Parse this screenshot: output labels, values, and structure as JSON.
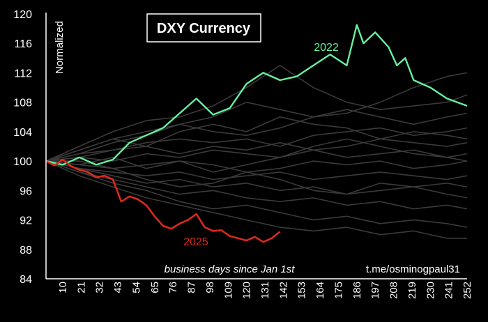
{
  "chart_data": {
    "type": "line",
    "title": "DXY Currency",
    "ylabel": "Normalized",
    "xlabel": "business days since Jan 1st",
    "watermark": "t.me/osminogpaul31",
    "ylim": [
      84,
      120
    ],
    "xlim": [
      0,
      252
    ],
    "y_ticks": [
      "84",
      "88",
      "92",
      "96",
      "100",
      "104",
      "108",
      "112",
      "116",
      "120"
    ],
    "x_ticks": [
      "10",
      "21",
      "32",
      "43",
      "54",
      "65",
      "76",
      "87",
      "98",
      "109",
      "120",
      "131",
      "142",
      "153",
      "164",
      "175",
      "186",
      "197",
      "208",
      "219",
      "230",
      "241",
      "252"
    ],
    "colors": {
      "background": "#000000",
      "axis": "#ffffff",
      "history": "#3a3a3a",
      "y2022": "#66f0a0",
      "y2025": "#d92a1c",
      "text": "#ffffff"
    },
    "series": [
      {
        "name": "2022",
        "label": "2022",
        "x": [
          0,
          10,
          20,
          30,
          40,
          50,
          60,
          70,
          80,
          90,
          100,
          110,
          120,
          130,
          140,
          150,
          160,
          170,
          180,
          186,
          190,
          197,
          205,
          210,
          215,
          220,
          230,
          240,
          252
        ],
        "values": [
          100,
          99.5,
          100.5,
          99.5,
          100.2,
          102.5,
          103.5,
          104.5,
          106.5,
          108.5,
          106.3,
          107.2,
          110.5,
          112,
          111,
          111.5,
          113,
          114.5,
          113,
          118.5,
          116,
          117.5,
          115.5,
          113,
          114,
          111,
          110,
          108.5,
          107.5
        ]
      },
      {
        "name": "2025",
        "label": "2025",
        "x": [
          0,
          5,
          10,
          15,
          20,
          25,
          30,
          35,
          40,
          45,
          50,
          55,
          60,
          65,
          70,
          75,
          80,
          85,
          90,
          95,
          100,
          105,
          110,
          115,
          120,
          125,
          130,
          135,
          140
        ],
        "values": [
          100,
          99.4,
          100.2,
          99.3,
          98.8,
          98.5,
          97.8,
          98,
          97.5,
          94.5,
          95.2,
          94.8,
          94,
          92.5,
          91.2,
          90.8,
          91.5,
          92,
          92.8,
          91,
          90.5,
          90.6,
          89.8,
          89.5,
          89.2,
          89.7,
          89,
          89.5,
          90.4
        ]
      },
      {
        "name": "history-1",
        "x": [
          0,
          20,
          40,
          60,
          80,
          100,
          120,
          140,
          160,
          180,
          200,
          220,
          240,
          252
        ],
        "values": [
          100,
          101.5,
          103,
          104,
          105,
          106,
          108,
          107,
          106,
          106.5,
          108,
          110,
          111.5,
          112
        ]
      },
      {
        "name": "history-2",
        "x": [
          0,
          20,
          40,
          60,
          80,
          100,
          120,
          140,
          160,
          180,
          200,
          220,
          240,
          252
        ],
        "values": [
          100,
          102,
          104,
          105.5,
          106,
          107.5,
          110,
          113,
          110,
          108,
          107,
          107.5,
          108,
          109
        ]
      },
      {
        "name": "history-3",
        "x": [
          0,
          20,
          40,
          60,
          80,
          100,
          120,
          140,
          160,
          180,
          200,
          220,
          240,
          252
        ],
        "values": [
          100,
          101,
          102.5,
          103.5,
          105,
          104,
          103.5,
          104.5,
          106,
          107,
          106,
          105,
          106,
          106.5
        ]
      },
      {
        "name": "history-4",
        "x": [
          0,
          20,
          40,
          60,
          80,
          100,
          120,
          140,
          160,
          180,
          200,
          220,
          240,
          252
        ],
        "values": [
          100,
          101,
          101.5,
          102.5,
          103,
          102.5,
          103,
          102,
          103.5,
          104,
          104.5,
          103.5,
          104,
          104.5
        ]
      },
      {
        "name": "history-5",
        "x": [
          0,
          20,
          40,
          60,
          80,
          100,
          120,
          140,
          160,
          180,
          200,
          220,
          240,
          252
        ],
        "values": [
          100,
          100.5,
          101.5,
          102,
          101,
          102,
          101.5,
          102.5,
          101.5,
          102,
          103,
          102.5,
          102,
          102.5
        ]
      },
      {
        "name": "history-6",
        "x": [
          0,
          20,
          40,
          60,
          80,
          100,
          120,
          140,
          160,
          180,
          200,
          220,
          240,
          252
        ],
        "values": [
          100,
          100.5,
          100,
          101,
          100.5,
          101.5,
          101,
          100.5,
          101.5,
          100.5,
          101,
          101.5,
          100.5,
          101
        ]
      },
      {
        "name": "history-7",
        "x": [
          0,
          20,
          40,
          60,
          80,
          100,
          120,
          140,
          160,
          180,
          200,
          220,
          240,
          252
        ],
        "values": [
          100,
          99.5,
          99,
          99.5,
          100,
          99.5,
          98.5,
          99,
          100,
          99.5,
          100,
          99,
          99.5,
          100
        ]
      },
      {
        "name": "history-8",
        "x": [
          0,
          20,
          40,
          60,
          80,
          100,
          120,
          140,
          160,
          180,
          200,
          220,
          240,
          252
        ],
        "values": [
          100,
          99,
          98.5,
          98,
          98.5,
          97.5,
          98,
          98.5,
          97.5,
          98,
          98.5,
          98,
          97.5,
          98
        ]
      },
      {
        "name": "history-9",
        "x": [
          0,
          20,
          40,
          60,
          80,
          100,
          120,
          140,
          160,
          180,
          200,
          220,
          240,
          252
        ],
        "values": [
          100,
          99,
          98,
          97,
          97.5,
          96.5,
          97,
          96,
          96.5,
          95.5,
          96,
          96.5,
          97,
          96.5
        ]
      },
      {
        "name": "history-10",
        "x": [
          0,
          20,
          40,
          60,
          80,
          100,
          120,
          140,
          160,
          180,
          200,
          220,
          240,
          252
        ],
        "values": [
          100,
          98.5,
          97.5,
          96.5,
          95.5,
          96,
          95,
          94.5,
          95,
          94,
          94.5,
          93.5,
          94,
          93.5
        ]
      },
      {
        "name": "history-11",
        "x": [
          0,
          20,
          40,
          60,
          80,
          100,
          120,
          140,
          160,
          180,
          200,
          220,
          240,
          252
        ],
        "values": [
          100,
          98.5,
          97,
          96,
          94.5,
          93.5,
          94,
          93,
          92,
          92.5,
          91.5,
          92,
          91.5,
          91
        ]
      },
      {
        "name": "history-12",
        "x": [
          0,
          20,
          40,
          60,
          80,
          100,
          120,
          140,
          160,
          180,
          200,
          220,
          240,
          252
        ],
        "values": [
          100,
          98,
          96.5,
          95,
          94,
          93,
          92,
          91,
          90.5,
          91,
          90,
          90.5,
          89.5,
          89.5
        ]
      },
      {
        "name": "history-13",
        "x": [
          0,
          20,
          40,
          60,
          80,
          100,
          120,
          140,
          160,
          180,
          200,
          220,
          240,
          252
        ],
        "values": [
          100,
          101.5,
          103,
          102,
          104,
          105,
          104,
          106,
          105,
          104.5,
          103,
          104,
          103.5,
          103
        ]
      },
      {
        "name": "history-14",
        "x": [
          0,
          20,
          40,
          60,
          80,
          100,
          120,
          140,
          160,
          180,
          200,
          220,
          240,
          252
        ],
        "values": [
          100,
          99.5,
          100.5,
          99,
          100,
          98.5,
          99.5,
          100.5,
          102,
          103,
          102,
          101,
          100.5,
          100
        ]
      },
      {
        "name": "history-15",
        "x": [
          0,
          20,
          40,
          60,
          80,
          100,
          120,
          140,
          160,
          180,
          200,
          220,
          240,
          252
        ],
        "values": [
          100,
          100,
          99,
          97.5,
          96.5,
          97,
          98.5,
          97.5,
          96,
          95.5,
          97,
          96.5,
          95.5,
          95
        ]
      }
    ]
  }
}
